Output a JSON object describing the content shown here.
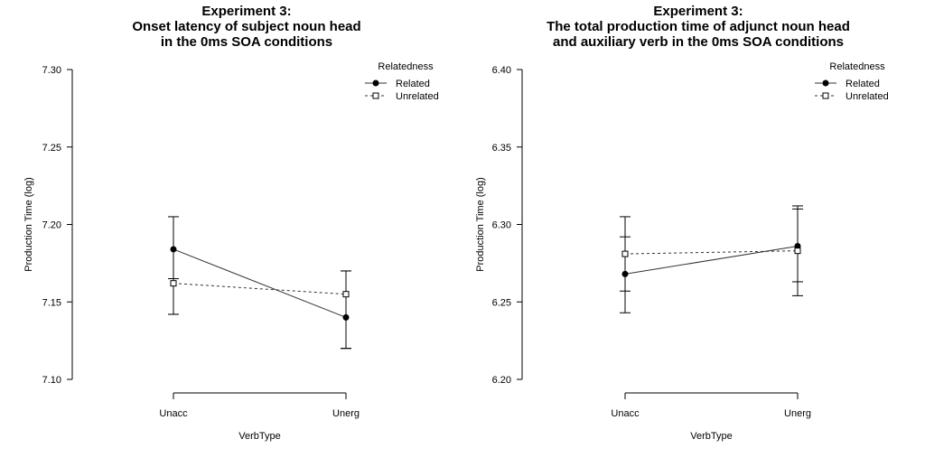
{
  "chart_data": [
    {
      "type": "line",
      "title": [
        "Experiment 3:",
        "Onset latency of subject noun head",
        "in the 0ms SOA conditions"
      ],
      "xlabel": "VerbType",
      "ylabel": "Production Time (log)",
      "categories": [
        "Unacc",
        "Unerg"
      ],
      "ylim": [
        7.1,
        7.3
      ],
      "yticks": [
        "7.10",
        "7.15",
        "7.20",
        "7.25",
        "7.30"
      ],
      "grid": false,
      "legend": {
        "title": "Relatedness",
        "placement": "top-right"
      },
      "series": [
        {
          "name": "Related",
          "marker": "filled-circle",
          "line": "solid",
          "values": [
            7.184,
            7.14
          ],
          "error_low": [
            7.142,
            7.12
          ],
          "error_high": [
            7.205,
            7.17
          ]
        },
        {
          "name": "Unrelated",
          "marker": "open-square",
          "line": "dotted",
          "values": [
            7.162,
            7.155
          ],
          "error_low": [
            7.142,
            7.12
          ],
          "error_high": [
            7.165,
            7.17
          ]
        }
      ]
    },
    {
      "type": "line",
      "title": [
        "Experiment  3:",
        "The total production time of adjunct noun head",
        "and auxiliary verb in the 0ms SOA conditions"
      ],
      "xlabel": "VerbType",
      "ylabel": "Production Time (log)",
      "categories": [
        "Unacc",
        "Unerg"
      ],
      "ylim": [
        6.2,
        6.4
      ],
      "yticks": [
        "6.20",
        "6.25",
        "6.30",
        "6.35",
        "6.40"
      ],
      "grid": false,
      "legend": {
        "title": "Relatedness",
        "placement": "top-right"
      },
      "series": [
        {
          "name": "Related",
          "marker": "filled-circle",
          "line": "solid",
          "values": [
            6.268,
            6.286
          ],
          "error_low": [
            6.243,
            6.254
          ],
          "error_high": [
            6.305,
            6.312
          ]
        },
        {
          "name": "Unrelated",
          "marker": "open-square",
          "line": "dotted",
          "values": [
            6.281,
            6.283
          ],
          "error_low": [
            6.257,
            6.263
          ],
          "error_high": [
            6.292,
            6.31
          ]
        }
      ]
    }
  ]
}
